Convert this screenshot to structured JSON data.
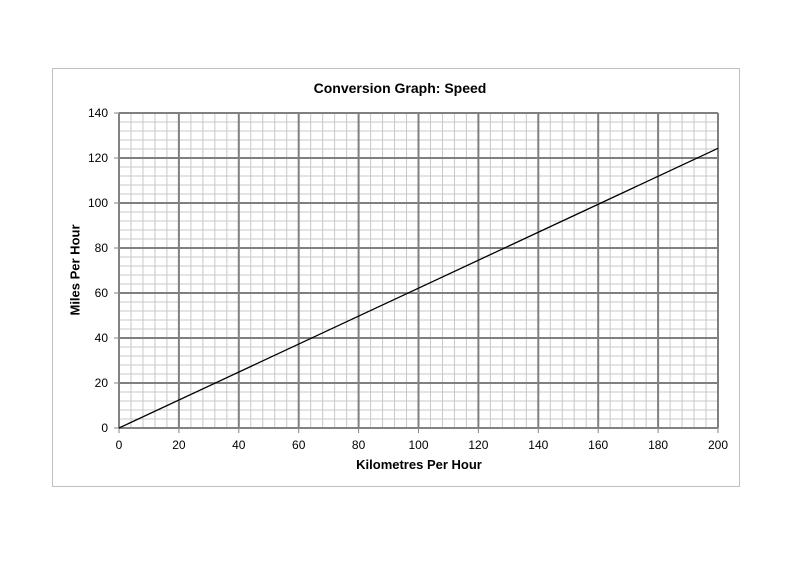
{
  "chart_data": {
    "type": "line",
    "title": "Conversion Graph: Speed",
    "xlabel": "Kilometres Per Hour",
    "ylabel": "Miles Per Hour",
    "xlim": [
      0,
      200
    ],
    "ylim": [
      0,
      140
    ],
    "x_ticks": [
      0,
      20,
      40,
      60,
      80,
      100,
      120,
      140,
      160,
      180,
      200
    ],
    "y_ticks": [
      0,
      20,
      40,
      60,
      80,
      100,
      120,
      140
    ],
    "grid": {
      "on": true,
      "major_step": 20,
      "minor_step": 4
    },
    "legend": null,
    "series": [
      {
        "name": "Miles Per Hour",
        "x": [
          0,
          200
        ],
        "values": [
          0,
          124.3
        ],
        "color": "#000000"
      }
    ]
  },
  "colors": {
    "major_grid": "#808080",
    "minor_grid": "#c8c8c8",
    "line": "#000000",
    "frame": "#bfbfbf"
  }
}
